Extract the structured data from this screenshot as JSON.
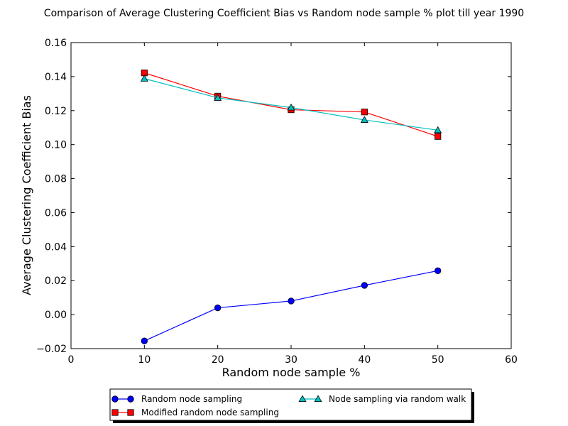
{
  "chart_data": {
    "type": "line",
    "title": "Comparison of Average Clustering Coefficient Bias vs Random node sample % plot till year 1990",
    "xlabel": "Random node sample %",
    "ylabel": "Average Clustering Coefficient Bias",
    "xlim": [
      0,
      60
    ],
    "ylim": [
      -0.02,
      0.16
    ],
    "xticks": [
      0,
      10,
      20,
      30,
      40,
      50,
      60
    ],
    "yticks": [
      -0.02,
      0.0,
      0.02,
      0.04,
      0.06,
      0.08,
      0.1,
      0.12,
      0.14,
      0.16
    ],
    "xtick_labels": [
      "0",
      "10",
      "20",
      "30",
      "40",
      "50",
      "60"
    ],
    "ytick_labels": [
      "−0.02",
      "0.00",
      "0.02",
      "0.04",
      "0.06",
      "0.08",
      "0.10",
      "0.12",
      "0.14",
      "0.16"
    ],
    "grid": false,
    "legend_position": "bottom-center-outside",
    "x": [
      10,
      20,
      30,
      40,
      50
    ],
    "series": [
      {
        "name": "Random node sampling",
        "values": [
          -0.0155,
          0.004,
          0.008,
          0.0172,
          0.0258
        ],
        "color": "#0000ff",
        "marker": "circle"
      },
      {
        "name": "Modified random node sampling",
        "values": [
          0.1422,
          0.1285,
          0.1205,
          0.1192,
          0.1048
        ],
        "color": "#ff0000",
        "marker": "square"
      },
      {
        "name": "Node sampling via random walk",
        "values": [
          0.1388,
          0.1275,
          0.1218,
          0.1145,
          0.1085
        ],
        "color": "#00bfbf",
        "marker": "triangle"
      }
    ]
  }
}
